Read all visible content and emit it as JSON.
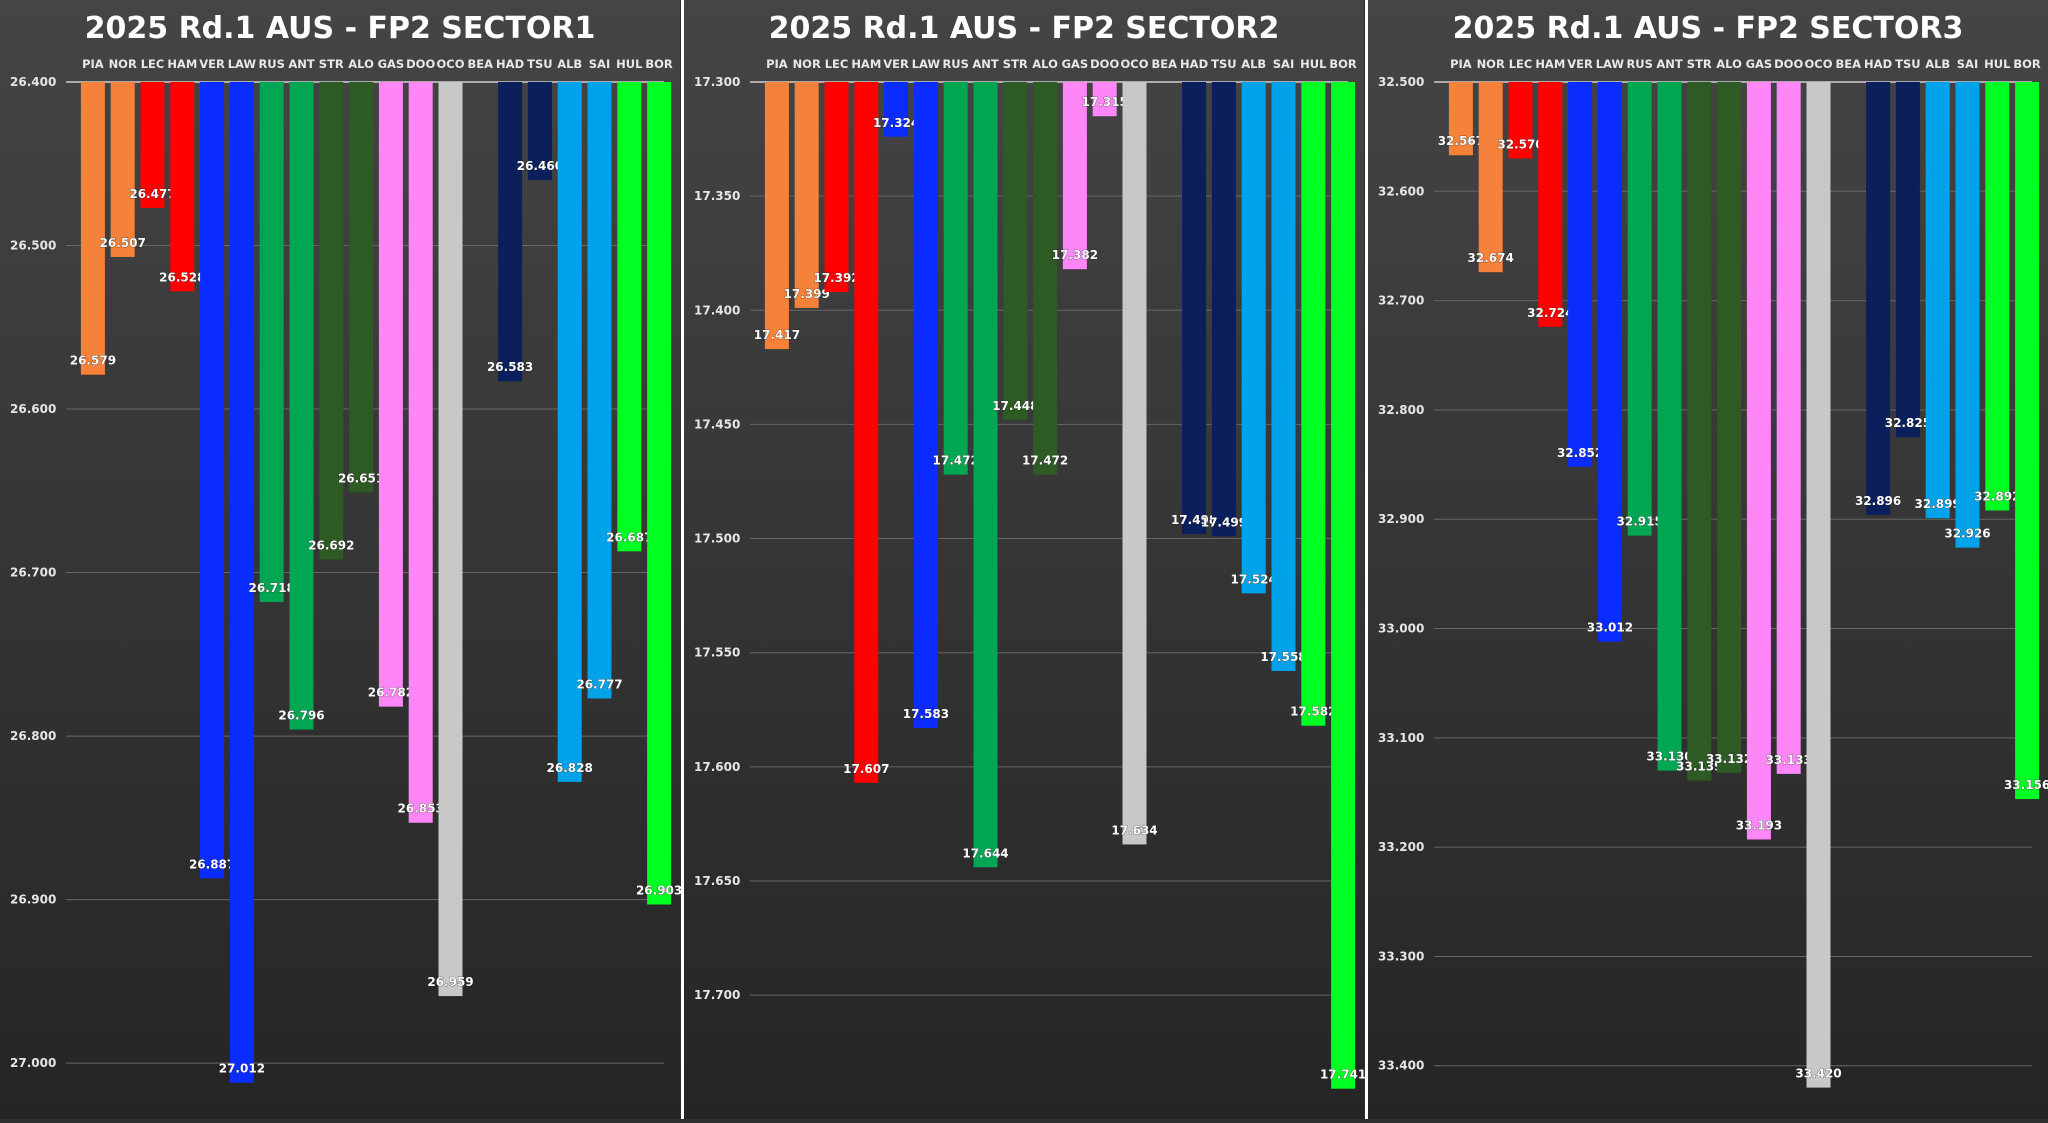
{
  "chart_data": [
    {
      "type": "bar",
      "title": "2025 Rd.1 AUS - FP2 SECTOR1",
      "categories": [
        "PIA",
        "NOR",
        "LEC",
        "HAM",
        "VER",
        "LAW",
        "RUS",
        "ANT",
        "STR",
        "ALO",
        "GAS",
        "DOO",
        "OCO",
        "BEA",
        "HAD",
        "TSU",
        "ALB",
        "SAI",
        "HUL",
        "BOR"
      ],
      "values": [
        26.579,
        26.507,
        26.477,
        26.528,
        26.887,
        27.012,
        26.718,
        26.796,
        26.692,
        26.651,
        26.782,
        26.853,
        26.959,
        null,
        26.583,
        26.46,
        26.828,
        26.777,
        26.687,
        26.903
      ],
      "data_labels": [
        "26.579",
        "26.507",
        "26.477",
        "26.528",
        "26.887",
        "27.012",
        "26.718",
        "26.796",
        "26.692",
        "26.651",
        "26.782",
        "26.853",
        "26.959",
        "",
        "26.583",
        "26.460",
        "26.828",
        "26.777",
        "26.687",
        "26.903"
      ],
      "ylim": [
        26.4,
        27.025
      ],
      "y_axis_inverted": true,
      "yticks": [
        "26.400",
        "26.500",
        "26.600",
        "26.700",
        "26.800",
        "26.900",
        "27.000"
      ],
      "grid": true
    },
    {
      "type": "bar",
      "title": "2025 Rd.1 AUS - FP2 SECTOR2",
      "categories": [
        "PIA",
        "NOR",
        "LEC",
        "HAM",
        "VER",
        "LAW",
        "RUS",
        "ANT",
        "STR",
        "ALO",
        "GAS",
        "DOO",
        "OCO",
        "BEA",
        "HAD",
        "TSU",
        "ALB",
        "SAI",
        "HUL",
        "BOR"
      ],
      "values": [
        17.417,
        17.399,
        17.392,
        17.607,
        17.324,
        17.583,
        17.472,
        17.644,
        17.448,
        17.472,
        17.382,
        17.315,
        17.634,
        null,
        17.498,
        17.499,
        17.524,
        17.558,
        17.582,
        17.741
      ],
      "data_labels": [
        "17.417",
        "17.399",
        "17.392",
        "17.607",
        "17.324",
        "17.583",
        "17.472",
        "17.644",
        "17.448",
        "17.472",
        "17.382",
        "17.315",
        "17.634",
        "",
        "17.498",
        "17.499",
        "17.524",
        "17.558",
        "17.582",
        "17.741"
      ],
      "ylim": [
        17.3,
        17.7477
      ],
      "y_axis_inverted": true,
      "yticks": [
        "17.300",
        "17.350",
        "17.400",
        "17.450",
        "17.500",
        "17.550",
        "17.600",
        "17.650",
        "17.700"
      ],
      "grid": true
    },
    {
      "type": "bar",
      "title": "2025 Rd.1 AUS - FP2 SECTOR3",
      "categories": [
        "PIA",
        "NOR",
        "LEC",
        "HAM",
        "VER",
        "LAW",
        "RUS",
        "ANT",
        "STR",
        "ALO",
        "GAS",
        "DOO",
        "OCO",
        "BEA",
        "HAD",
        "TSU",
        "ALB",
        "SAI",
        "HUL",
        "BOR"
      ],
      "values": [
        32.567,
        32.674,
        32.57,
        32.724,
        32.852,
        33.012,
        32.915,
        33.13,
        33.139,
        33.132,
        33.193,
        33.133,
        33.42,
        null,
        32.896,
        32.825,
        32.899,
        32.926,
        32.892,
        33.156
      ],
      "data_labels": [
        "32.567",
        "32.674",
        "32.570",
        "32.724",
        "32.852",
        "33.012",
        "32.915",
        "33.130",
        "33.139",
        "33.132",
        "33.193",
        "33.133",
        "33.420",
        "",
        "32.896",
        "32.825",
        "32.899",
        "32.926",
        "32.892",
        "33.156"
      ],
      "ylim": [
        32.5,
        33.435
      ],
      "y_axis_inverted": true,
      "yticks": [
        "32.500",
        "32.600",
        "32.700",
        "32.800",
        "32.900",
        "33.000",
        "33.100",
        "33.200",
        "33.300",
        "33.400"
      ],
      "grid": true
    }
  ],
  "colors": {
    "PIA": "#f5813a",
    "NOR": "#f5813a",
    "LEC": "#ff0000",
    "HAM": "#ff0000",
    "VER": "#0a2cff",
    "LAW": "#0a2cff",
    "RUS": "#00a651",
    "ANT": "#00a651",
    "STR": "#2e5a23",
    "ALO": "#2e5a23",
    "GAS": "#ff86f7",
    "DOO": "#ff86f7",
    "OCO": "#c8c8c8",
    "BEA": "#c8c8c8",
    "HAD": "#0b1f5c",
    "TSU": "#0b1f5c",
    "ALB": "#00a3ea",
    "SAI": "#00a3ea",
    "HUL": "#00ff22",
    "BOR": "#00ff22"
  }
}
